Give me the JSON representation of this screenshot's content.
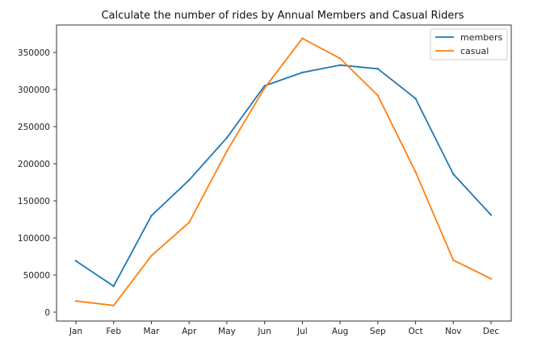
{
  "chart_data": {
    "type": "line",
    "title": "Calculate the number of rides by Annual Members and Casual Riders",
    "xlabel": "",
    "ylabel": "",
    "categories": [
      "Jan",
      "Feb",
      "Mar",
      "Apr",
      "May",
      "Jun",
      "Jul",
      "Aug",
      "Sep",
      "Oct",
      "Nov",
      "Dec"
    ],
    "ylim": [
      -12000,
      387000
    ],
    "yticks": [
      0,
      50000,
      100000,
      150000,
      200000,
      250000,
      300000,
      350000
    ],
    "grid": false,
    "legend_position": "top-right",
    "series": [
      {
        "name": "members",
        "color": "#1f77b4",
        "values": [
          69000,
          35000,
          130000,
          178000,
          235000,
          305000,
          323000,
          333000,
          328000,
          288000,
          186000,
          131000
        ]
      },
      {
        "name": "casual",
        "color": "#ff7f0e",
        "values": [
          15000,
          9000,
          76000,
          121000,
          217000,
          302000,
          369000,
          342000,
          292000,
          189000,
          70000,
          45000
        ]
      }
    ]
  }
}
